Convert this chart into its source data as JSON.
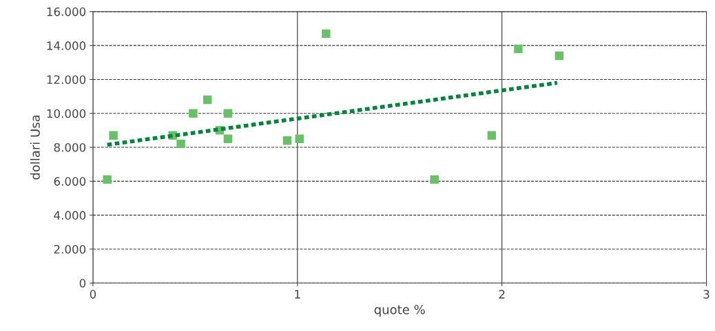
{
  "chart_data": {
    "type": "scatter",
    "xlabel": "quote %",
    "ylabel": "dollari Usa",
    "xlim": [
      0,
      3
    ],
    "xticks": [
      0,
      1,
      2,
      3
    ],
    "ylim": [
      0,
      16000
    ],
    "yticks": [
      {
        "value": 0,
        "label": "0"
      },
      {
        "value": 2000,
        "label": "2.000"
      },
      {
        "value": 4000,
        "label": "4.000"
      },
      {
        "value": 6000,
        "label": "6.000"
      },
      {
        "value": 8000,
        "label": "8.000"
      },
      {
        "value": 10000,
        "label": "10.000"
      },
      {
        "value": 12000,
        "label": "12.000"
      },
      {
        "value": 14000,
        "label": "14.000"
      },
      {
        "value": 16000,
        "label": "16.000"
      }
    ],
    "grid": true,
    "legend": false,
    "series": [
      {
        "marker": "square",
        "color": "#6abf69",
        "x": [
          0.07,
          0.1,
          0.39,
          0.43,
          0.49,
          0.56,
          0.62,
          0.66,
          0.66,
          0.95,
          1.01,
          1.14,
          1.67,
          1.95,
          2.08,
          2.28
        ],
        "values": [
          6100,
          8700,
          8700,
          8200,
          10000,
          10800,
          9000,
          10000,
          8500,
          8400,
          8500,
          14700,
          6100,
          8700,
          13800,
          13400
        ]
      },
      {
        "type": "line",
        "line_style": "dotted",
        "color": "#00843d",
        "x": [
          0.07,
          2.27
        ],
        "values": [
          8150,
          11800
        ]
      }
    ]
  }
}
